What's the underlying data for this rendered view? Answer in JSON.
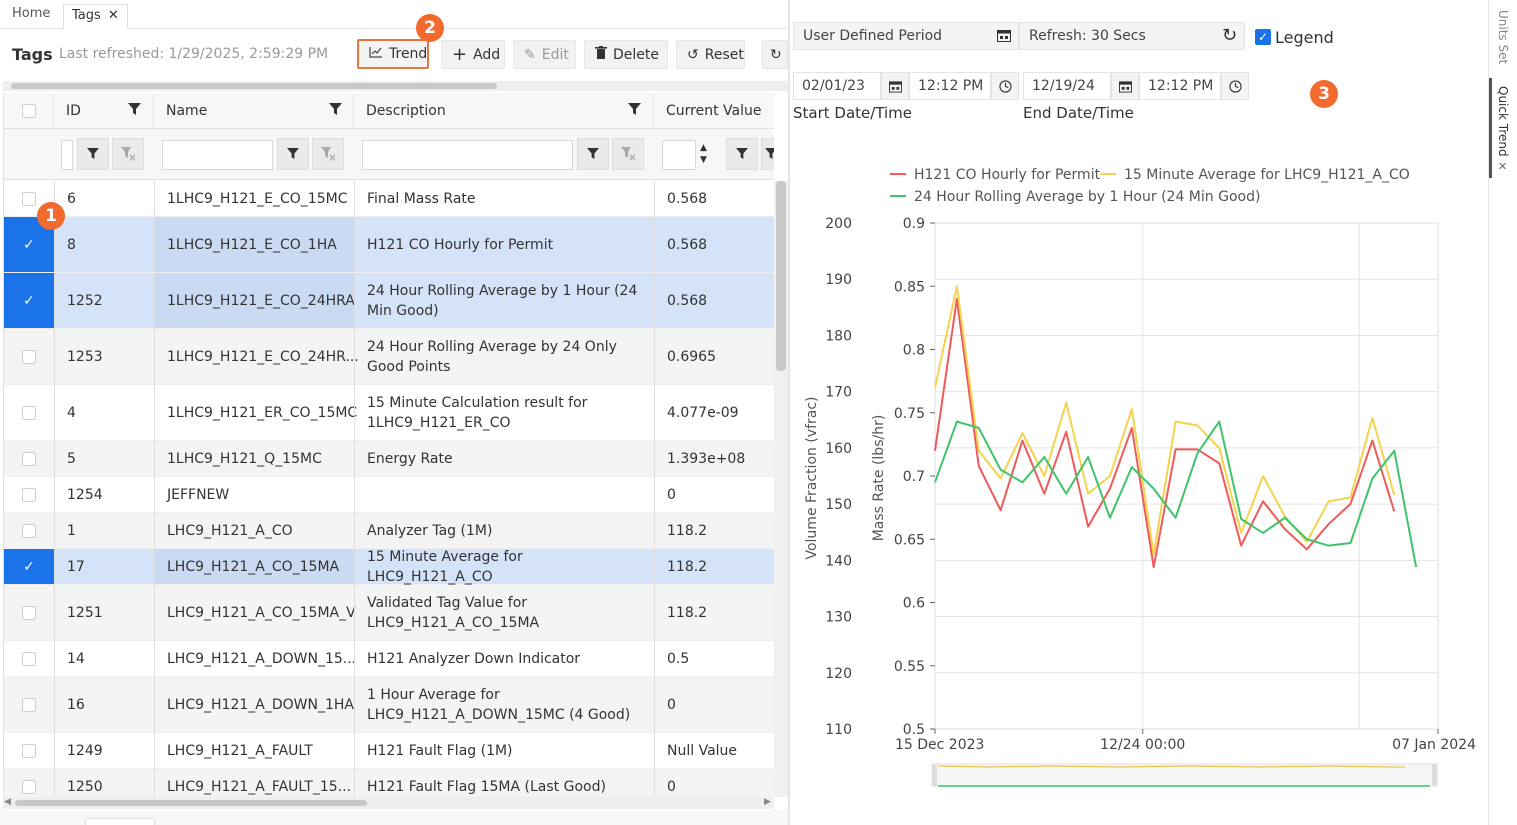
{
  "tabs": {
    "home": "Home",
    "tags": "Tags",
    "close": "✕"
  },
  "toolbar": {
    "title": "Tags",
    "last_refreshed": "Last refreshed: 1/29/2025, 2:59:29 PM",
    "trend": "Trend",
    "add": "Add",
    "edit": "Edit",
    "delete": "Delete",
    "reset": "Reset"
  },
  "badges": {
    "b1": "1",
    "b2": "2",
    "b3": "3"
  },
  "grid": {
    "columns": {
      "id": "ID",
      "name": "Name",
      "description": "Description",
      "current_value": "Current Value"
    },
    "rows": [
      {
        "id": "6",
        "name": "1LHC9_H121_E_CO_15MC",
        "desc": "Final Mass Rate",
        "value": "0.568",
        "selected": false
      },
      {
        "id": "8",
        "name": "1LHC9_H121_E_CO_1HA",
        "desc": "H121 CO Hourly for Permit",
        "value": "0.568",
        "selected": true
      },
      {
        "id": "1252",
        "name": "1LHC9_H121_E_CO_24HRA",
        "desc": "24 Hour Rolling Average by 1 Hour (24 Min Good)",
        "value": "0.568",
        "selected": true
      },
      {
        "id": "1253",
        "name": "1LHC9_H121_E_CO_24HR...",
        "desc": "24 Hour Rolling Average by 24 Only Good Points",
        "value": "0.6965",
        "selected": false
      },
      {
        "id": "4",
        "name": "1LHC9_H121_ER_CO_15MC",
        "desc": "15 Minute Calculation result for 1LHC9_H121_ER_CO",
        "value": "4.077e-09",
        "selected": false
      },
      {
        "id": "5",
        "name": "1LHC9_H121_Q_15MC",
        "desc": "Energy Rate",
        "value": "1.393e+08",
        "selected": false
      },
      {
        "id": "1254",
        "name": "JEFFNEW",
        "desc": "",
        "value": "0",
        "selected": false
      },
      {
        "id": "1",
        "name": "LHC9_H121_A_CO",
        "desc": "Analyzer Tag (1M)",
        "value": "118.2",
        "selected": false
      },
      {
        "id": "17",
        "name": "LHC9_H121_A_CO_15MA",
        "desc": "15 Minute Average for LHC9_H121_A_CO",
        "value": "118.2",
        "selected": true
      },
      {
        "id": "1251",
        "name": "LHC9_H121_A_CO_15MA_V",
        "desc": "Validated Tag Value for LHC9_H121_A_CO_15MA",
        "value": "118.2",
        "selected": false
      },
      {
        "id": "14",
        "name": "LHC9_H121_A_DOWN_15...",
        "desc": "H121 Analyzer Down Indicator",
        "value": "0.5",
        "selected": false
      },
      {
        "id": "16",
        "name": "LHC9_H121_A_DOWN_1HA",
        "desc": "1 Hour Average for LHC9_H121_A_DOWN_15MC (4 Good)",
        "value": "0",
        "selected": false
      },
      {
        "id": "1249",
        "name": "LHC9_H121_A_FAULT",
        "desc": "H121 Fault Flag (1M)",
        "value": "Null Value",
        "selected": false
      },
      {
        "id": "1250",
        "name": "LHC9_H121_A_FAULT_15...",
        "desc": "H121 Fault Flag 15MA (Last Good)",
        "value": "0",
        "selected": false
      }
    ]
  },
  "trend_panel": {
    "period": "User Defined Period",
    "refresh": "Refresh: 30 Secs",
    "legend_label": "Legend",
    "legend_check": "✓",
    "start_date": "02/01/23",
    "start_time": "12:12 PM",
    "end_date": "12/19/24",
    "end_time": "12:12 PM",
    "start_label": "Start Date/Time",
    "end_label": "End Date/Time"
  },
  "side_tabs": {
    "units": "Units Set",
    "quick": "Quick Trend",
    "close": "✕"
  },
  "chart_data": {
    "type": "line",
    "title": "",
    "legend": [
      "H121 CO Hourly for Permit",
      "15 Minute Average for LHC9_H121_A_CO",
      "24 Hour Rolling Average by 1 Hour (24 Min Good)"
    ],
    "legend_placement": "top",
    "grid": true,
    "y_left_label": "Volume Fraction (vfrac)",
    "y_left_ticks": [
      "200",
      "190",
      "180",
      "170",
      "160",
      "150",
      "140",
      "130",
      "120",
      "110"
    ],
    "y_left_lim": [
      110,
      200
    ],
    "y_right_label": "Mass Rate (lbs/hr)",
    "y_right_ticks": [
      "0.9",
      "0.85",
      "0.8",
      "0.75",
      "0.7",
      "0.65",
      "0.6",
      "0.55",
      "0.5"
    ],
    "y_right_lim": [
      0.5,
      0.9
    ],
    "x_ticks": [
      "15 Dec 2023",
      "12/24 00:00",
      "07 Jan 2024"
    ],
    "x_lim": [
      0,
      23
    ],
    "series": [
      {
        "name": "H121 CO Hourly for Permit",
        "color": "#f05a5a",
        "axis": "right",
        "points": [
          [
            0,
            0.72
          ],
          [
            1,
            0.84
          ],
          [
            2,
            0.708
          ],
          [
            3,
            0.673
          ],
          [
            4,
            0.728
          ],
          [
            5,
            0.686
          ],
          [
            6,
            0.735
          ],
          [
            7,
            0.66
          ],
          [
            8,
            0.69
          ],
          [
            9,
            0.738
          ],
          [
            10,
            0.628
          ],
          [
            11,
            0.721
          ],
          [
            12,
            0.721
          ],
          [
            13,
            0.71
          ],
          [
            14,
            0.645
          ],
          [
            15,
            0.68
          ],
          [
            16,
            0.658
          ],
          [
            17,
            0.642
          ],
          [
            18,
            0.662
          ],
          [
            19,
            0.678
          ],
          [
            20,
            0.728
          ],
          [
            21,
            0.672
          ]
        ]
      },
      {
        "name": "15 Minute Average for LHC9_H121_A_CO",
        "color": "#f5d34e",
        "axis": "right",
        "points": [
          [
            0,
            0.77
          ],
          [
            1,
            0.85
          ],
          [
            2,
            0.72
          ],
          [
            3,
            0.698
          ],
          [
            4,
            0.734
          ],
          [
            5,
            0.7
          ],
          [
            6,
            0.758
          ],
          [
            7,
            0.686
          ],
          [
            8,
            0.7
          ],
          [
            9,
            0.753
          ],
          [
            10,
            0.638
          ],
          [
            11,
            0.743
          ],
          [
            12,
            0.74
          ],
          [
            13,
            0.722
          ],
          [
            14,
            0.655
          ],
          [
            15,
            0.7
          ],
          [
            16,
            0.668
          ],
          [
            17,
            0.648
          ],
          [
            18,
            0.68
          ],
          [
            19,
            0.683
          ],
          [
            20,
            0.746
          ],
          [
            21,
            0.685
          ]
        ]
      },
      {
        "name": "24 Hour Rolling Average by 1 Hour (24 Min Good)",
        "color": "#3fc46a",
        "axis": "right",
        "points": [
          [
            0,
            0.695
          ],
          [
            1,
            0.743
          ],
          [
            2,
            0.738
          ],
          [
            3,
            0.705
          ],
          [
            4,
            0.695
          ],
          [
            5,
            0.715
          ],
          [
            6,
            0.686
          ],
          [
            7,
            0.715
          ],
          [
            8,
            0.667
          ],
          [
            9,
            0.707
          ],
          [
            10,
            0.69
          ],
          [
            11,
            0.667
          ],
          [
            12,
            0.718
          ],
          [
            13,
            0.743
          ],
          [
            14,
            0.666
          ],
          [
            15,
            0.655
          ],
          [
            16,
            0.667
          ],
          [
            17,
            0.65
          ],
          [
            18,
            0.645
          ],
          [
            19,
            0.647
          ],
          [
            20,
            0.698
          ],
          [
            21,
            0.72
          ],
          [
            22,
            0.628
          ]
        ]
      }
    ]
  }
}
